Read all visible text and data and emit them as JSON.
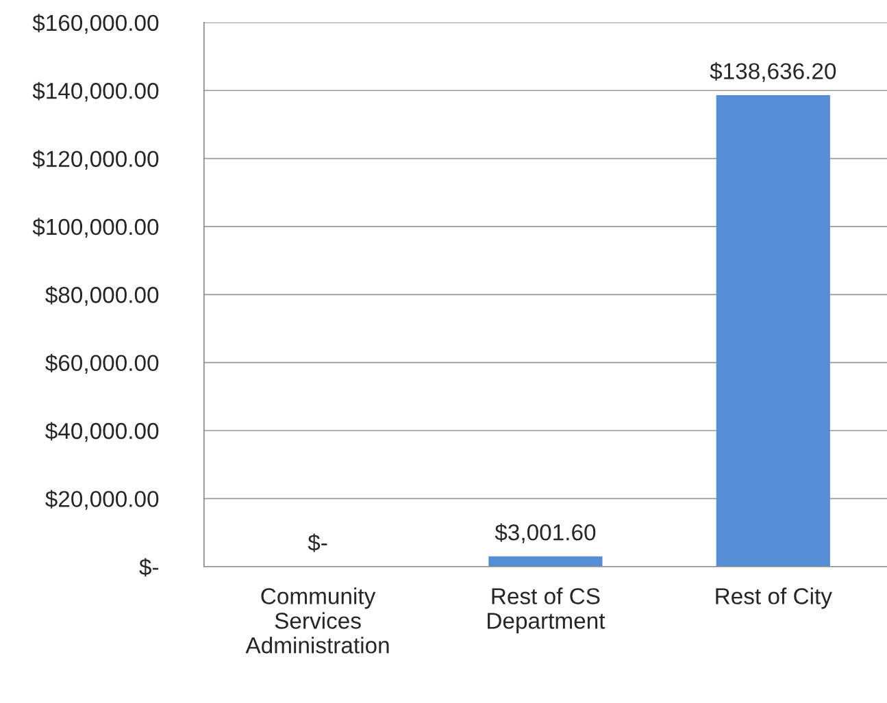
{
  "chart_data": {
    "type": "bar",
    "categories": [
      "Community\nServices\nAdministration",
      "Rest of CS\nDepartment",
      "Rest of City"
    ],
    "values": [
      0,
      3001.6,
      138636.2
    ],
    "value_labels": [
      "$-",
      "$3,001.60",
      "$138,636.20"
    ],
    "color": "#558ed5",
    "ylim": [
      0,
      160000
    ],
    "yticks": [
      {
        "value": 0,
        "label": "$-"
      },
      {
        "value": 20000,
        "label": "$20,000.00"
      },
      {
        "value": 40000,
        "label": "$40,000.00"
      },
      {
        "value": 60000,
        "label": "$60,000.00"
      },
      {
        "value": 80000,
        "label": "$80,000.00"
      },
      {
        "value": 100000,
        "label": "$100,000.00"
      },
      {
        "value": 120000,
        "label": "$120,000.00"
      },
      {
        "value": 140000,
        "label": "$140,000.00"
      },
      {
        "value": 160000,
        "label": "$160,000.00"
      }
    ],
    "grid": "y",
    "legend": false
  }
}
